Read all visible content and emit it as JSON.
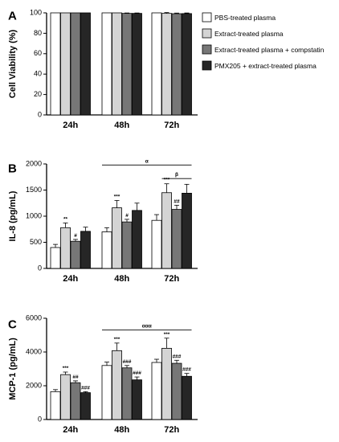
{
  "legend": [
    {
      "label": "PBS-treated plasma",
      "color": "#ffffff"
    },
    {
      "label": "Extract-treated plasma",
      "color": "#d4d4d4"
    },
    {
      "label": "Extract-treated plasma + compstatin",
      "color": "#777777"
    },
    {
      "label": "PMX205 + extract-treated plasma",
      "color": "#262626"
    }
  ],
  "chart_data": [
    {
      "panel": "A",
      "type": "bar",
      "categories": [
        "24h",
        "48h",
        "72h"
      ],
      "ylabel": "Cell Viability (%)",
      "ylim": [
        0,
        100
      ],
      "yticks": [
        "0",
        "20",
        "40",
        "60",
        "80",
        "100"
      ],
      "series": [
        {
          "name": "PBS-treated plasma",
          "values": [
            100,
            100,
            100
          ],
          "errors": [
            0,
            0,
            0
          ],
          "sig": [
            "",
            "",
            ""
          ]
        },
        {
          "name": "Extract-treated plasma",
          "values": [
            100,
            100,
            99.5
          ],
          "errors": [
            0,
            0,
            0.8
          ],
          "sig": [
            "",
            "",
            ""
          ]
        },
        {
          "name": "Extract-treated plasma + compstatin",
          "values": [
            100,
            99.5,
            99.2
          ],
          "errors": [
            0,
            0.4,
            0.6
          ],
          "sig": [
            "",
            "",
            ""
          ]
        },
        {
          "name": "PMX205 + extract-treated plasma",
          "values": [
            100,
            99.5,
            99.3
          ],
          "errors": [
            0,
            0.4,
            0.6
          ],
          "sig": [
            "",
            "",
            ""
          ]
        }
      ],
      "brackets": []
    },
    {
      "panel": "B",
      "type": "bar",
      "categories": [
        "24h",
        "48h",
        "72h"
      ],
      "ylabel": "IL-8 (pg/mL)",
      "ylim": [
        0,
        2000
      ],
      "yticks": [
        "0",
        "500",
        "1000",
        "1500",
        "2000"
      ],
      "series": [
        {
          "name": "PBS-treated plasma",
          "values": [
            400,
            700,
            920
          ],
          "errors": [
            60,
            80,
            110
          ],
          "sig": [
            "",
            "",
            ""
          ]
        },
        {
          "name": "Extract-treated plasma",
          "values": [
            780,
            1160,
            1450
          ],
          "errors": [
            90,
            140,
            170
          ],
          "sig": [
            "**",
            "***",
            "***"
          ]
        },
        {
          "name": "Extract-treated plasma + compstatin",
          "values": [
            520,
            890,
            1130
          ],
          "errors": [
            35,
            50,
            80
          ],
          "sig": [
            "#",
            "#",
            "##"
          ]
        },
        {
          "name": "PMX205 + extract-treated plasma",
          "values": [
            710,
            1110,
            1440
          ],
          "errors": [
            80,
            140,
            170
          ],
          "sig": [
            "",
            "",
            ""
          ]
        }
      ],
      "brackets": [
        {
          "label": "α",
          "from": "48h",
          "to": "72h",
          "y": 1980
        },
        {
          "label": "β",
          "from": "72h",
          "to": "72h",
          "y": 1720
        }
      ]
    },
    {
      "panel": "C",
      "type": "bar",
      "categories": [
        "24h",
        "48h",
        "72h"
      ],
      "ylabel": "MCP-1 (pg/mL)",
      "ylim": [
        0,
        6000
      ],
      "yticks": [
        "0",
        "2000",
        "4000",
        "6000"
      ],
      "series": [
        {
          "name": "PBS-treated plasma",
          "values": [
            1650,
            3200,
            3380
          ],
          "errors": [
            120,
            200,
            190
          ],
          "sig": [
            "",
            "",
            ""
          ]
        },
        {
          "name": "Extract-treated plasma",
          "values": [
            2660,
            4080,
            4220
          ],
          "errors": [
            150,
            450,
            600
          ],
          "sig": [
            "***",
            "***",
            "***"
          ]
        },
        {
          "name": "Extract-treated plasma + compstatin",
          "values": [
            2180,
            3060,
            3330
          ],
          "errors": [
            110,
            140,
            180
          ],
          "sig": [
            "##",
            "###",
            "###"
          ]
        },
        {
          "name": "PMX205 + extract-treated plasma",
          "values": [
            1590,
            2350,
            2560
          ],
          "errors": [
            60,
            170,
            170
          ],
          "sig": [
            "###",
            "###",
            "###"
          ]
        }
      ],
      "brackets": [
        {
          "label": "ααα",
          "from": "48h",
          "to": "72h",
          "y": 5300
        }
      ]
    }
  ]
}
